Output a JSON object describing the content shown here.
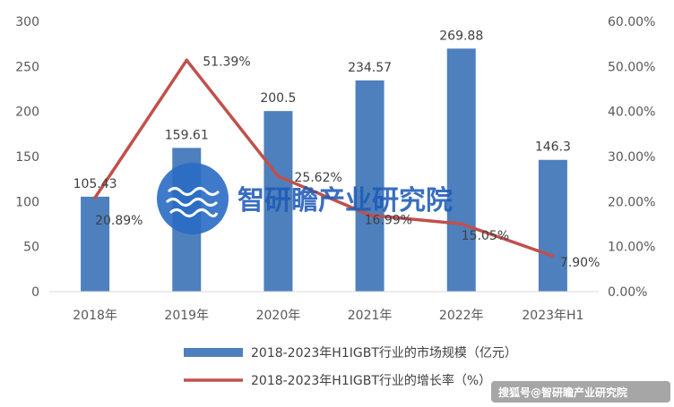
{
  "chart_data": {
    "type": "bar",
    "categories": [
      "2018年",
      "2019年",
      "2020年",
      "2021年",
      "2022年",
      "2023年H1"
    ],
    "series": [
      {
        "name": "2018-2023年H1IGBT行业的市场规模（亿元）",
        "type": "bar",
        "axis": "left",
        "color": "#4e80bd",
        "values": [
          105.43,
          159.61,
          200.5,
          234.57,
          269.88,
          146.3
        ],
        "labels": [
          "105.43",
          "159.61",
          "200.5",
          "234.57",
          "269.88",
          "146.3"
        ]
      },
      {
        "name": "2018-2023年H1IGBT行业的增长率（%）",
        "type": "line",
        "axis": "right",
        "color": "#c0504d",
        "values": [
          20.89,
          51.39,
          25.62,
          16.99,
          15.05,
          7.9
        ],
        "labels": [
          "20.89%",
          "51.39%",
          "25.62%",
          "16.99%",
          "15.05%",
          "7.90%"
        ]
      }
    ],
    "y_left": {
      "ylim": [
        0,
        300
      ],
      "ticks": [
        "0",
        "50",
        "100",
        "150",
        "200",
        "250",
        "300"
      ]
    },
    "y_right": {
      "ylim": [
        0,
        60
      ],
      "ticks": [
        "0.00%",
        "10.00%",
        "20.00%",
        "30.00%",
        "40.00%",
        "50.00%",
        "60.00%"
      ]
    },
    "grid": false,
    "legend": "bottom"
  },
  "watermark": {
    "text": "智研瞻产业研究院",
    "logo": "wave-logo-icon"
  },
  "credit": {
    "text": "搜狐号@智研瞻产业研究院"
  }
}
